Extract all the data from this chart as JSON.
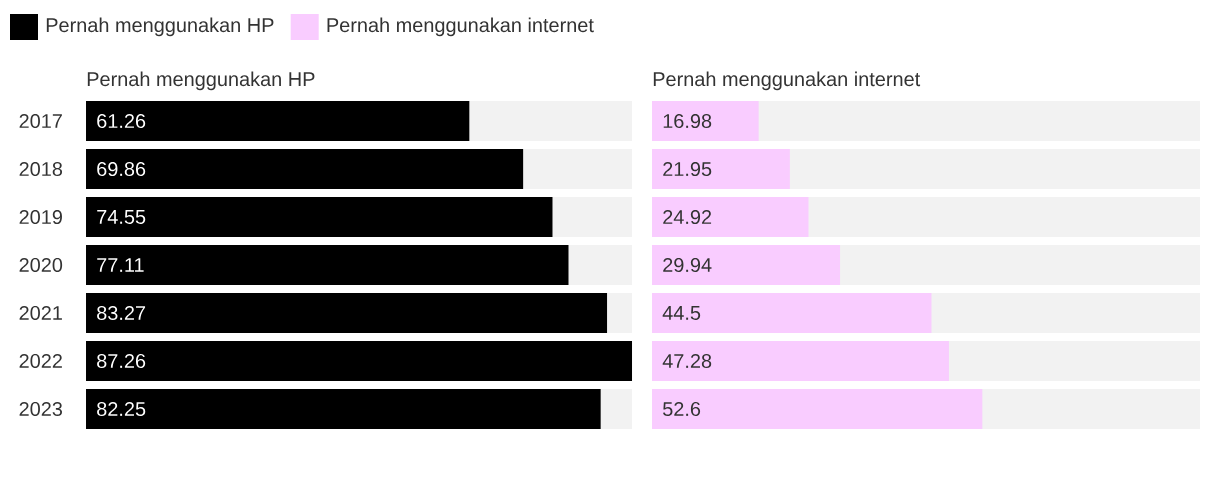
{
  "chart_data": [
    {
      "type": "bar",
      "orientation": "horizontal",
      "title": "Pernah menggunakan HP",
      "categories": [
        "2017",
        "2018",
        "2019",
        "2020",
        "2021",
        "2022",
        "2023"
      ],
      "series": [
        {
          "name": "Pernah menggunakan HP",
          "color": "#000000",
          "values": [
            61.26,
            69.86,
            74.55,
            77.11,
            83.27,
            87.26,
            82.25
          ]
        }
      ],
      "xlim": [
        0,
        87.26
      ],
      "data_labels": true,
      "legend": "top",
      "tick_labels": "y"
    },
    {
      "type": "bar",
      "orientation": "horizontal",
      "title": "Pernah menggunakan internet",
      "categories": [
        "2017",
        "2018",
        "2019",
        "2020",
        "2021",
        "2022",
        "2023"
      ],
      "series": [
        {
          "name": "Pernah menggunakan internet",
          "color": "#f9ccff",
          "values": [
            16.98,
            21.95,
            24.92,
            29.94,
            44.5,
            47.28,
            52.6
          ]
        }
      ],
      "xlim": [
        0,
        87.26
      ],
      "data_labels": true,
      "legend": "top",
      "tick_labels": false
    }
  ]
}
